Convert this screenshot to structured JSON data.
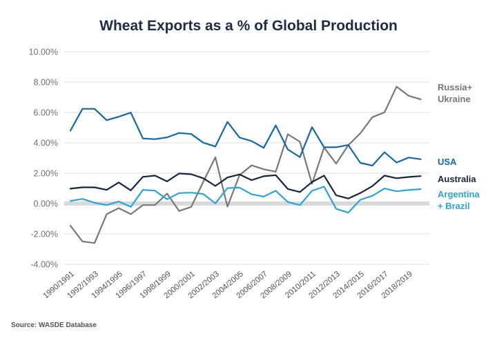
{
  "chart_data": {
    "type": "line",
    "title": "Wheat Exports as a % of Global Production",
    "xlabel": "",
    "ylabel": "",
    "ylim": [
      -4,
      10
    ],
    "yticks": [
      10,
      8,
      6,
      4,
      2,
      0,
      -2,
      -4
    ],
    "ytick_labels": [
      "10.00%",
      "8.00%",
      "6.00%",
      "4.00%",
      "2.00%",
      "0.00%",
      "-2.00%",
      "-4.00%"
    ],
    "grid": true,
    "legend_position": "right (inline labels at line ends)",
    "x": [
      "1990/1991",
      "1991/1992",
      "1992/1993",
      "1993/1994",
      "1994/1995",
      "1995/1996",
      "1996/1997",
      "1997/1998",
      "1998/1999",
      "1999/2000",
      "2000/2001",
      "2001/2002",
      "2002/2003",
      "2003/2004",
      "2004/2005",
      "2005/2006",
      "2006/2007",
      "2007/2008",
      "2008/2009",
      "2009/2010",
      "2010/2011",
      "2011/2012",
      "2012/2013",
      "2013/2014",
      "2014/2015",
      "2015/2016",
      "2016/2017",
      "2017/2018",
      "2018/2019",
      "2019/2020"
    ],
    "xtick_labels": [
      "1990/1991",
      "1992/1993",
      "1994/1995",
      "1996/1997",
      "1998/1999",
      "2000/2001",
      "2002/2003",
      "2004/2005",
      "2006/2007",
      "2008/2009",
      "2010/2011",
      "2012/2013",
      "2014/2015",
      "2016/2017",
      "2018/2019"
    ],
    "series": [
      {
        "name": "Russia+ Ukraine",
        "legend_lines": [
          "Russia+",
          "Ukraine"
        ],
        "color": "#74777b",
        "values": [
          -1.46,
          -2.5,
          -2.6,
          -0.7,
          -0.3,
          -0.7,
          -0.1,
          -0.1,
          0.66,
          -0.49,
          -0.22,
          1.43,
          3.05,
          -0.2,
          1.87,
          2.52,
          2.26,
          2.1,
          4.57,
          4.07,
          1.3,
          3.69,
          2.63,
          3.84,
          4.63,
          5.69,
          6.01,
          7.7,
          7.1,
          6.87
        ]
      },
      {
        "name": "USA",
        "legend_lines": [
          "USA"
        ],
        "color": "#1467a5",
        "values": [
          4.8,
          6.24,
          6.24,
          5.49,
          5.72,
          5.99,
          4.29,
          4.24,
          4.36,
          4.65,
          4.58,
          4.01,
          3.76,
          5.38,
          4.35,
          4.12,
          3.67,
          5.15,
          3.56,
          3.06,
          5.03,
          3.71,
          3.71,
          3.86,
          2.68,
          2.5,
          3.38,
          2.7,
          3.03,
          2.92
        ]
      },
      {
        "name": "Australia",
        "legend_lines": [
          "Australia"
        ],
        "color": "#14243f",
        "values": [
          0.98,
          1.07,
          1.07,
          0.9,
          1.39,
          0.87,
          1.76,
          1.84,
          1.46,
          1.98,
          1.93,
          1.67,
          1.16,
          1.72,
          1.92,
          1.54,
          1.8,
          1.87,
          0.96,
          0.76,
          1.42,
          1.84,
          0.54,
          0.33,
          0.69,
          1.15,
          1.84,
          1.67,
          1.75,
          1.81
        ]
      },
      {
        "name": "Argentina + Brazil",
        "legend_lines": [
          "Argentina",
          "+ Brazil"
        ],
        "color": "#2aa3d8",
        "values": [
          0.17,
          0.31,
          0.05,
          -0.1,
          0.13,
          -0.22,
          0.9,
          0.85,
          0.28,
          0.69,
          0.72,
          0.63,
          0.01,
          1.02,
          1.05,
          0.61,
          0.46,
          0.84,
          0.1,
          -0.1,
          0.84,
          1.11,
          -0.35,
          -0.6,
          0.25,
          0.51,
          0.99,
          0.81,
          0.89,
          0.95
        ]
      }
    ],
    "source": "Source: WASDE Database"
  },
  "colors": {
    "title": "#1d2b45",
    "grid": "#dcdcdc",
    "zero_band": "#d9d9d9"
  }
}
